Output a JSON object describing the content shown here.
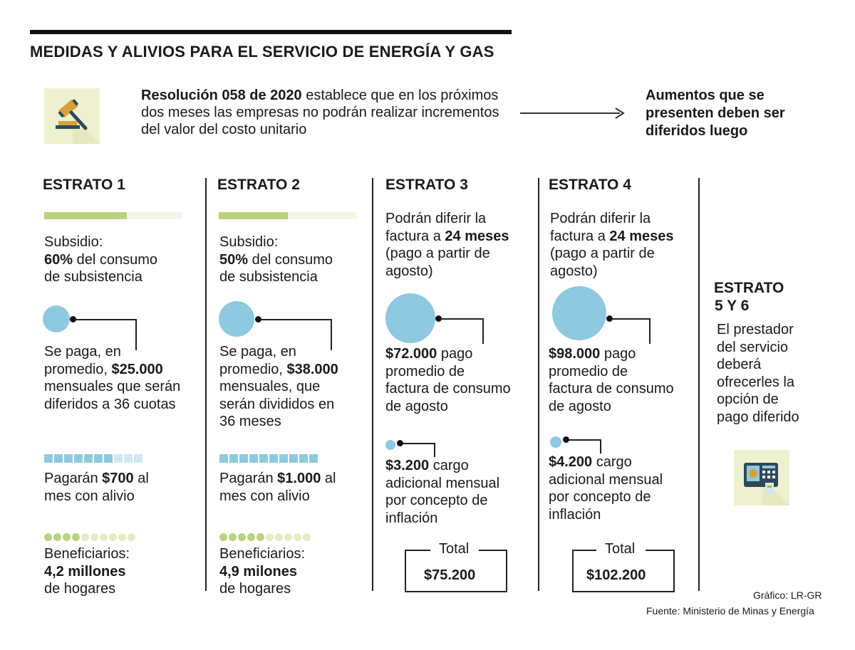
{
  "title": "MEDIDAS Y ALIVIOS PARA EL SERVICIO DE ENERGÍA Y GAS",
  "intro": {
    "bold": "Resolución 058 de 2020",
    "rest": " establece que en los próximos dos meses las empresas no podrán realizar incrementos del valor del costo unitario"
  },
  "conclusion": "Aumentos que se presenten deben ser diferidos luego",
  "icons": {
    "top": "gavel-icon",
    "bottom": "payment-terminal-icon"
  },
  "colors": {
    "green": "#b9d27e",
    "green_light": "#f4f5e6",
    "blue": "#8ec9df",
    "blue_light": "#cfe7f0",
    "icon_bg": "#eef1cf"
  },
  "estrato1": {
    "heading": "ESTRATO 1",
    "subsidy_share": 0.6,
    "subsidy_l1": "Subsidio:",
    "subsidy_pct": "60%",
    "subsidy_l2": " del consumo",
    "subsidy_l3": "de subsistencia",
    "pay_l1": "Se paga, en",
    "pay_l2a": "promedio, ",
    "pay_l2b": "$25.000",
    "pay_l3": "mensuales que serán",
    "pay_l4": "diferidos a 36 cuotas",
    "relief_share": 0.7,
    "relief_pre": "Pagarán ",
    "relief_amt": "$700",
    "relief_post": " al",
    "relief_l2": "mes con alivio",
    "beneficiaries_share": 0.4,
    "ben_l1": "Beneficiarios:",
    "ben_l2": "4,2 millones",
    "ben_l3": "de hogares"
  },
  "estrato2": {
    "heading": "ESTRATO 2",
    "subsidy_share": 0.5,
    "subsidy_l1": "Subsidio:",
    "subsidy_pct": "50%",
    "subsidy_l2": " del consumo",
    "subsidy_l3": "de subsistencia",
    "pay_l1": "Se paga, en",
    "pay_l2a": "promedio, ",
    "pay_l2b": "$38.000",
    "pay_l3": "mensuales, que",
    "pay_l4": "serán divididos en",
    "pay_l5": "36 meses",
    "relief_share": 1.0,
    "relief_pre": "Pagarán ",
    "relief_amt": "$1.000",
    "relief_post": " al",
    "relief_l2": "mes con alivio",
    "beneficiaries_share": 0.5,
    "ben_l1": "Beneficiarios:",
    "ben_l2": "4,9 milones",
    "ben_l3": "de hogares"
  },
  "estrato3": {
    "heading": "ESTRATO 3",
    "defer_l1": "Podrán diferir la",
    "defer_l2a": "factura a ",
    "defer_l2b": "24 meses",
    "defer_l3": "(pago a partir de",
    "defer_l4": "agosto)",
    "avg_amt": "$72.000",
    "avg_l1": " pago",
    "avg_l2": "promedio de",
    "avg_l3": "factura de consumo",
    "avg_l4": "de agosto",
    "extra_amt": "$3.200",
    "extra_l1": " cargo",
    "extra_l2": "adicional mensual",
    "extra_l3": "por concepto de",
    "extra_l4": "inflación",
    "total_label": "Total",
    "total_value": "$75.200"
  },
  "estrato4": {
    "heading": "ESTRATO 4",
    "defer_l1": "Podrán diferir la",
    "defer_l2a": "factura a ",
    "defer_l2b": "24 meses",
    "defer_l3": "(pago a partir de",
    "defer_l4": "agosto)",
    "avg_amt": "$98.000",
    "avg_l1": " pago",
    "avg_l2": "promedio de",
    "avg_l3": "factura de consumo",
    "avg_l4": "de agosto",
    "extra_amt": "$4.200",
    "extra_l1": " cargo",
    "extra_l2": "adicional mensual",
    "extra_l3": "por concepto de",
    "extra_l4": "inflación",
    "total_label": "Total",
    "total_value": "$102.200"
  },
  "estrato56": {
    "heading_l1": "ESTRATO",
    "heading_l2": "5 Y 6",
    "l1": "El prestador",
    "l2": "del servicio",
    "l3": "deberá",
    "l4": "ofrecerles la",
    "l5": "opción de",
    "l6": "pago diferido"
  },
  "credits": {
    "grafico": "Gráfico: LR-GR",
    "fuente": "Fuente: Ministerio de Minas y Energía"
  }
}
